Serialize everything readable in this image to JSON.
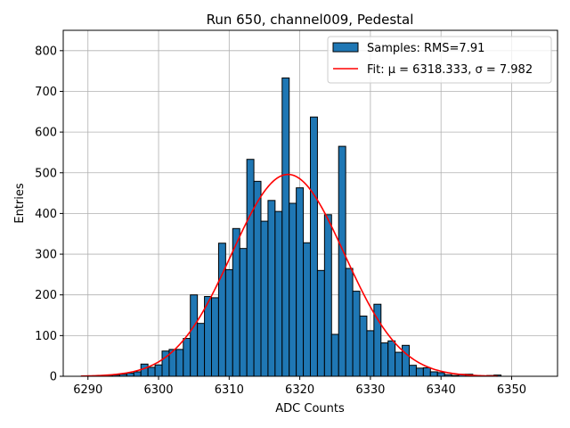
{
  "chart_data": {
    "type": "bar",
    "title": "Run 650, channel009, Pedestal",
    "xlabel": "ADC Counts",
    "ylabel": "Entries",
    "xlim": [
      6286.5,
      6356.5
    ],
    "ylim": [
      0,
      850
    ],
    "xticks": [
      6290,
      6300,
      6310,
      6320,
      6330,
      6340,
      6350
    ],
    "yticks": [
      0,
      100,
      200,
      300,
      400,
      500,
      600,
      700,
      800
    ],
    "grid": true,
    "legend_position": "top-right",
    "colors": {
      "bars": "#1f77b4",
      "bar_edge": "#000000",
      "fit": "#ff0000",
      "grid": "#b0b0b0"
    },
    "bins": [
      6289,
      6290,
      6291,
      6292,
      6293,
      6294,
      6295,
      6296,
      6297,
      6298,
      6299,
      6300,
      6301,
      6302,
      6303,
      6304,
      6305,
      6306,
      6307,
      6308,
      6309,
      6310,
      6311,
      6312,
      6313,
      6314,
      6315,
      6316,
      6317,
      6318,
      6319,
      6320,
      6321,
      6322,
      6323,
      6324,
      6325,
      6326,
      6327,
      6328,
      6329,
      6330,
      6331,
      6332,
      6333,
      6334,
      6335,
      6336,
      6337,
      6338,
      6339,
      6340,
      6341,
      6342,
      6343,
      6344,
      6345,
      6346,
      6347,
      6348
    ],
    "series": [
      {
        "name": "Samples: RMS=7.91",
        "kind": "histogram",
        "values": [
          0,
          0,
          0,
          1,
          1,
          3,
          5,
          8,
          11,
          30,
          22,
          28,
          62,
          66,
          66,
          93,
          200,
          130,
          196,
          193,
          327,
          262,
          363,
          314,
          533,
          479,
          381,
          432,
          405,
          733,
          425,
          463,
          328,
          637,
          260,
          397,
          103,
          565,
          265,
          209,
          148,
          112,
          177,
          82,
          87,
          59,
          76,
          27,
          20,
          21,
          11,
          9,
          4,
          2,
          5,
          5,
          1,
          1,
          2,
          3
        ]
      },
      {
        "name": "Fit: μ = 6318.333, σ = 7.982",
        "kind": "gaussian",
        "mu": 6318.333,
        "sigma": 7.982,
        "amplitude": 496,
        "x_range": [
          6289,
          6348
        ]
      }
    ]
  }
}
